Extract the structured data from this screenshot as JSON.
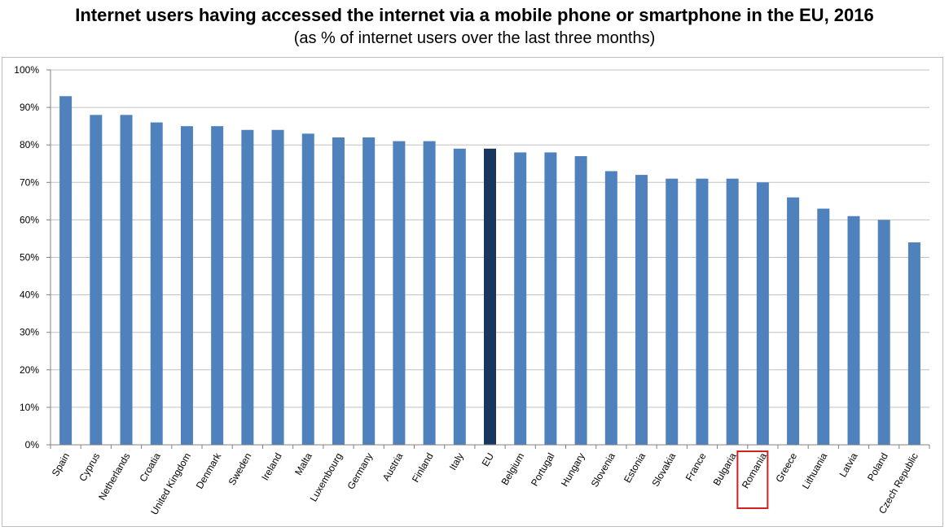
{
  "header": {
    "title": "Internet users having accessed the internet via a mobile phone or smartphone in the EU, 2016",
    "subtitle": "(as % of internet users over the last three months)"
  },
  "colors": {
    "bar": "#4f81bd",
    "highlight_bar": "#17375e",
    "grid": "#c0c0c0",
    "highlight_box": "#d02020"
  },
  "chart_data": {
    "type": "bar",
    "title": "Internet users having accessed the internet via a mobile phone or smartphone in the EU, 2016",
    "subtitle": "(as % of internet users over the last three months)",
    "categories": [
      "Spain",
      "Cyprus",
      "Netherlands",
      "Croatia",
      "United Kingdom",
      "Denmark",
      "Sweden",
      "Ireland",
      "Malta",
      "Luxembourg",
      "Germany",
      "Austria",
      "Finland",
      "Italy",
      "EU",
      "Belgium",
      "Portugal",
      "Hungary",
      "Slovenia",
      "Estonia",
      "Slovakia",
      "France",
      "Bulgaria",
      "Romania",
      "Greece",
      "Lithuania",
      "Latvia",
      "Poland",
      "Czech Republic"
    ],
    "values": [
      93,
      88,
      88,
      86,
      85,
      85,
      84,
      84,
      83,
      82,
      82,
      81,
      81,
      79,
      79,
      78,
      78,
      77,
      73,
      72,
      71,
      71,
      71,
      70,
      66,
      63,
      61,
      60,
      54
    ],
    "highlighted_bar": "EU",
    "boxed_label": "Romania",
    "ylim": [
      0,
      100
    ],
    "yticks": [
      "0%",
      "10%",
      "20%",
      "30%",
      "40%",
      "50%",
      "60%",
      "70%",
      "80%",
      "90%",
      "100%"
    ],
    "grid": true,
    "xlabel": "",
    "ylabel": ""
  }
}
